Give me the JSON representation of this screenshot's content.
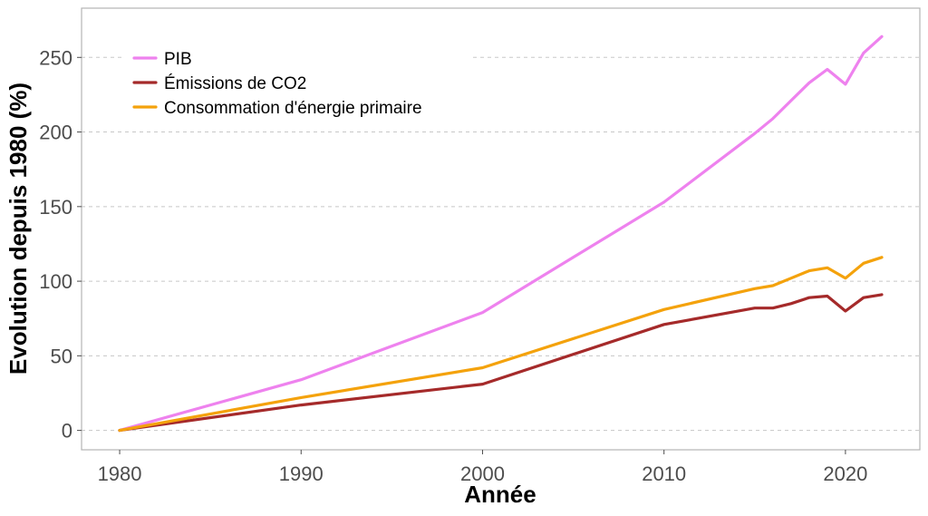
{
  "chart_data": {
    "type": "line",
    "xlabel": "Année",
    "ylabel": "Evolution depuis 1980 (%)",
    "xlim": [
      1977.9,
      2024.1
    ],
    "ylim": [
      -13,
      283
    ],
    "xticks": [
      1980,
      1990,
      2000,
      2010,
      2020
    ],
    "yticks": [
      0,
      50,
      100,
      150,
      200,
      250
    ],
    "grid": "horizontal dashed",
    "legend_position": "top-left",
    "series": [
      {
        "name": "PIB",
        "color": "#ee82ee",
        "points": [
          [
            1980,
            0
          ],
          [
            1990,
            34
          ],
          [
            2000,
            79
          ],
          [
            2010,
            153
          ],
          [
            2015,
            199
          ],
          [
            2016,
            209
          ],
          [
            2017,
            221
          ],
          [
            2018,
            233
          ],
          [
            2019,
            242
          ],
          [
            2020,
            232
          ],
          [
            2021,
            253
          ],
          [
            2022,
            264
          ]
        ]
      },
      {
        "name": "Émissions de CO2",
        "color": "#a52a2a",
        "points": [
          [
            1980,
            0
          ],
          [
            1990,
            17
          ],
          [
            2000,
            31
          ],
          [
            2010,
            71
          ],
          [
            2015,
            82
          ],
          [
            2016,
            82
          ],
          [
            2017,
            85
          ],
          [
            2018,
            89
          ],
          [
            2019,
            90
          ],
          [
            2020,
            80
          ],
          [
            2021,
            89
          ],
          [
            2022,
            91
          ]
        ]
      },
      {
        "name": "Consommation d'énergie primaire",
        "color": "#f4a20c",
        "points": [
          [
            1980,
            0
          ],
          [
            1990,
            22
          ],
          [
            2000,
            42
          ],
          [
            2010,
            81
          ],
          [
            2015,
            95
          ],
          [
            2016,
            97
          ],
          [
            2017,
            102
          ],
          [
            2018,
            107
          ],
          [
            2019,
            109
          ],
          [
            2020,
            102
          ],
          [
            2021,
            112
          ],
          [
            2022,
            116
          ]
        ]
      }
    ]
  }
}
